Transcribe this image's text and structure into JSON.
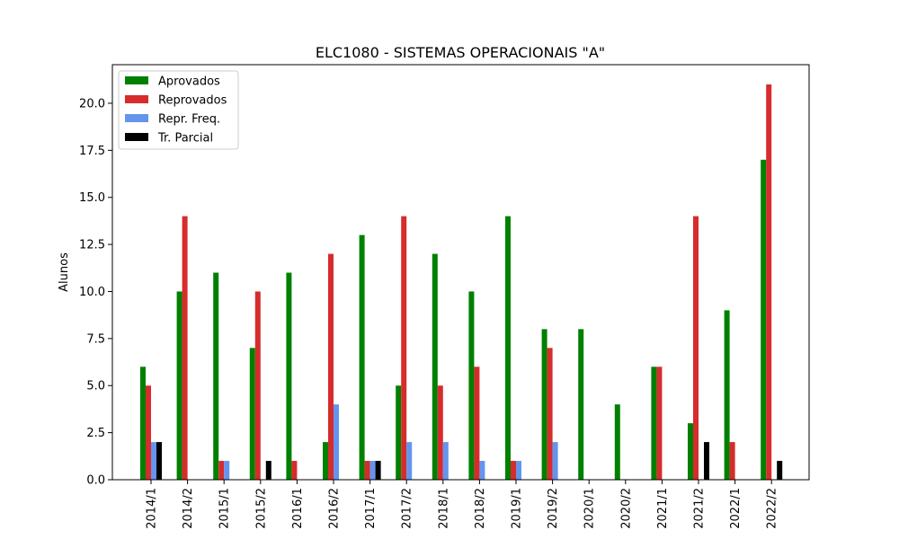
{
  "chart_data": {
    "type": "bar",
    "title": "ELC1080 - SISTEMAS OPERACIONAIS \"A\"",
    "xlabel": "",
    "ylabel": "Alunos",
    "ylim": [
      0,
      22.05
    ],
    "yticks": [
      "0.0",
      "2.5",
      "5.0",
      "7.5",
      "10.0",
      "12.5",
      "15.0",
      "17.5",
      "20.0"
    ],
    "categories": [
      "2014/1",
      "2014/2",
      "2015/1",
      "2015/2",
      "2016/1",
      "2016/2",
      "2017/1",
      "2017/2",
      "2018/1",
      "2018/2",
      "2019/1",
      "2019/2",
      "2020/1",
      "2020/2",
      "2021/1",
      "2021/2",
      "2022/1",
      "2022/2"
    ],
    "series": [
      {
        "name": "Aprovados",
        "color": "#008000",
        "values": [
          6,
          10,
          11,
          7,
          11,
          2,
          13,
          5,
          12,
          10,
          14,
          8,
          8,
          4,
          6,
          3,
          9,
          17
        ]
      },
      {
        "name": "Reprovados",
        "color": "#d62c2c",
        "values": [
          5,
          14,
          1,
          10,
          1,
          12,
          1,
          14,
          5,
          6,
          1,
          7,
          0,
          0,
          6,
          14,
          2,
          21
        ]
      },
      {
        "name": "Repr. Freq.",
        "color": "#6495ed",
        "values": [
          2,
          0,
          1,
          0,
          0,
          4,
          1,
          2,
          2,
          1,
          1,
          2,
          0,
          0,
          0,
          0,
          0,
          0
        ]
      },
      {
        "name": "Tr. Parcial",
        "color": "#000000",
        "values": [
          2,
          0,
          0,
          1,
          0,
          0,
          1,
          0,
          0,
          0,
          0,
          0,
          0,
          0,
          0,
          2,
          0,
          1
        ]
      }
    ],
    "legend": "top-left",
    "grid": false
  }
}
